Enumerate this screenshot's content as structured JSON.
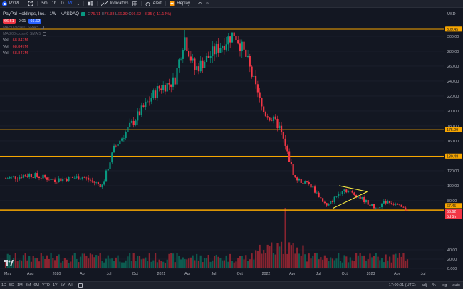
{
  "topbar": {
    "symbol": "PYPL",
    "add_symbol": "+",
    "intervals": [
      "5m",
      "1h",
      "D",
      "W"
    ],
    "active_interval": "W",
    "chart_type_icon": "candles-icon",
    "indicators_label": "Indicators",
    "layouts_icon": "grid-icon",
    "alert_label": "Alert",
    "replay_label": "Replay"
  },
  "legend": {
    "title": "PayPal Holdings, Inc. · 1W · NASDAQ",
    "ohlc": [
      {
        "k": "O",
        "v": "75.71"
      },
      {
        "k": "H",
        "v": "76.38"
      },
      {
        "k": "L",
        "v": "66.39"
      },
      {
        "k": "C",
        "v": "66.62"
      }
    ],
    "change": "−8.35 (−11.14%)",
    "bid": "66.61",
    "spread": "0.01",
    "ask": "66.62",
    "ma50": "MA 50 close 0 SMA 5",
    "ma200": "MA 200 close 0 SMA 5",
    "vol_label": "Vol",
    "vol_value": "68.847M"
  },
  "price_axis": {
    "currency": "USD",
    "ticks": [
      {
        "v": 300,
        "t": "300.00"
      },
      {
        "v": 280,
        "t": "280.00"
      },
      {
        "v": 260,
        "t": "260.00"
      },
      {
        "v": 240,
        "t": "240.00"
      },
      {
        "v": 220,
        "t": "220.00"
      },
      {
        "v": 200,
        "t": "200.00"
      },
      {
        "v": 180,
        "t": "180.00"
      },
      {
        "v": 160,
        "t": "160.00"
      },
      {
        "v": 140,
        "t": "140.00"
      },
      {
        "v": 120,
        "t": "120.00"
      },
      {
        "v": 100,
        "t": "100.00"
      },
      {
        "v": 80,
        "t": "80.00"
      },
      {
        "v": 40,
        "t": "40.00"
      },
      {
        "v": 20,
        "t": "20.00"
      },
      {
        "v": 0,
        "t": "0.000"
      }
    ],
    "level_labels": [
      {
        "v": 309.45,
        "t": "309.45",
        "color": "#f7a600"
      },
      {
        "v": 175.09,
        "t": "175.09",
        "color": "#f7a600"
      },
      {
        "v": 139.48,
        "t": "139.48",
        "color": "#f7a600"
      },
      {
        "v": 67.45,
        "t": "67.45",
        "color": "#f7a600"
      },
      {
        "v": 66.62,
        "t": "66.62",
        "color": "#f23645"
      },
      {
        "v": 64,
        "t": "5d 5h",
        "color": "#f23645"
      }
    ]
  },
  "time_axis": [
    "May",
    "Aug",
    "2020",
    "Apr",
    "Jul",
    "Oct",
    "2021",
    "Apr",
    "Jul",
    "Oct",
    "2022",
    "Apr",
    "Jul",
    "Oct",
    "2023",
    "Apr",
    "Jul"
  ],
  "bottombar": {
    "ranges": [
      "1D",
      "5D",
      "1M",
      "3M",
      "6M",
      "YTD",
      "1Y",
      "5Y",
      "All"
    ],
    "time": "17:00:01 (UTC)",
    "adj": "adj",
    "pct": "%",
    "log": "log",
    "auto": "auto"
  },
  "chart_data": {
    "type": "candlestick",
    "symbol": "PYPL",
    "interval": "1W",
    "ylim": [
      60,
      320
    ],
    "horizontal_levels": [
      309.45,
      175.09,
      139.48,
      67.45
    ],
    "anchors": [
      {
        "t": 0,
        "p": 110
      },
      {
        "t": 0.06,
        "p": 115
      },
      {
        "t": 0.12,
        "p": 108
      },
      {
        "t": 0.19,
        "p": 112
      },
      {
        "t": 0.24,
        "p": 100
      },
      {
        "t": 0.27,
        "p": 150
      },
      {
        "t": 0.33,
        "p": 195
      },
      {
        "t": 0.38,
        "p": 230
      },
      {
        "t": 0.42,
        "p": 240
      },
      {
        "t": 0.445,
        "p": 300
      },
      {
        "t": 0.47,
        "p": 255
      },
      {
        "t": 0.53,
        "p": 285
      },
      {
        "t": 0.57,
        "p": 305
      },
      {
        "t": 0.6,
        "p": 270
      },
      {
        "t": 0.64,
        "p": 200
      },
      {
        "t": 0.68,
        "p": 180
      },
      {
        "t": 0.72,
        "p": 110
      },
      {
        "t": 0.76,
        "p": 100
      },
      {
        "t": 0.8,
        "p": 72
      },
      {
        "t": 0.84,
        "p": 96
      },
      {
        "t": 0.88,
        "p": 85
      },
      {
        "t": 0.92,
        "p": 70
      },
      {
        "t": 0.95,
        "p": 80
      },
      {
        "t": 1,
        "p": 67
      }
    ],
    "triangle": {
      "upper": [
        [
          0.83,
          100
        ],
        [
          0.9,
          92
        ]
      ],
      "lower": [
        [
          0.815,
          70
        ],
        [
          0.9,
          92
        ]
      ]
    },
    "volume_spike_t": 0.695
  }
}
